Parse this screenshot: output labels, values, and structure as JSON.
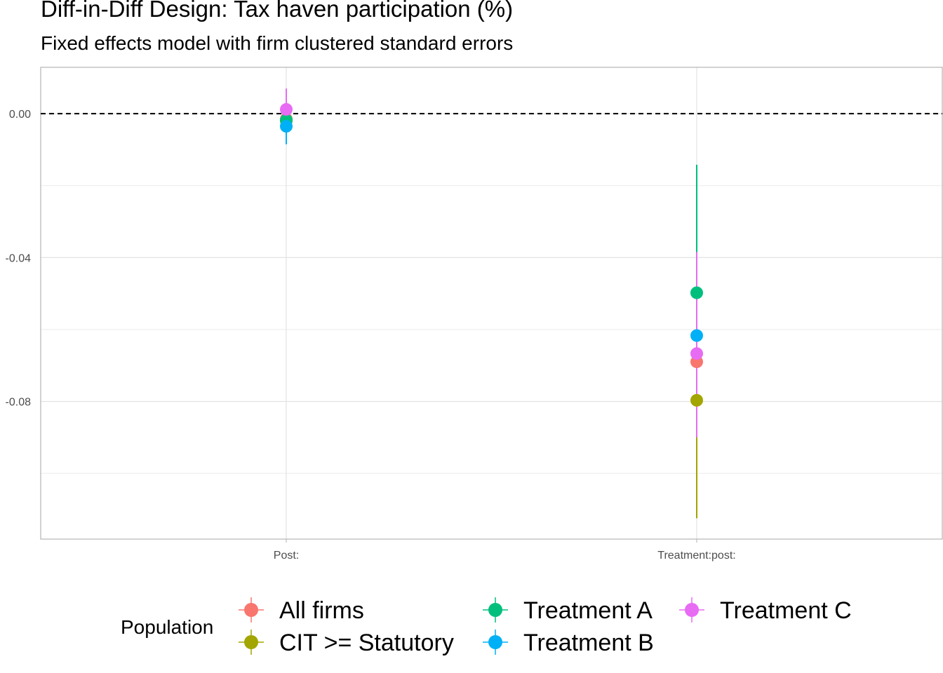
{
  "chart_data": {
    "type": "scatter",
    "title": "Diff-in-Diff Design: Tax haven participation (%)",
    "subtitle": "Fixed effects model with firm clustered standard errors",
    "xlabel": "",
    "ylabel": "",
    "categories": [
      "Post:",
      "Treatment:post:"
    ],
    "ylim": [
      -0.1183,
      0.0129
    ],
    "yticks": [
      0.0,
      -0.04,
      -0.08
    ],
    "ytick_labels": [
      "0.00",
      "-0.04",
      "-0.08"
    ],
    "reference_line": {
      "y": 0,
      "style": "dashed"
    },
    "grid": true,
    "legend": {
      "title": "Population",
      "position": "bottom"
    },
    "series": [
      {
        "name": "All firms",
        "color": "#F8766D",
        "points": [
          {
            "category": "Post:",
            "estimate": -0.0015,
            "low": -0.006,
            "high": 0.003
          },
          {
            "category": "Treatment:post:",
            "estimate": -0.069,
            "low": -0.09,
            "high": -0.048
          }
        ]
      },
      {
        "name": "CIT >= Statutory",
        "color": "#A3A500",
        "points": [
          {
            "category": "Post:",
            "estimate": -0.002,
            "low": -0.006,
            "high": 0.002
          },
          {
            "category": "Treatment:post:",
            "estimate": -0.0797,
            "low": -0.1125,
            "high": -0.048
          }
        ]
      },
      {
        "name": "Treatment A",
        "color": "#00BF7D",
        "points": [
          {
            "category": "Post:",
            "estimate": -0.0018,
            "low": -0.006,
            "high": 0.0025
          },
          {
            "category": "Treatment:post:",
            "estimate": -0.0498,
            "low": -0.085,
            "high": -0.0142
          }
        ]
      },
      {
        "name": "Treatment B",
        "color": "#00B0F6",
        "points": [
          {
            "category": "Post:",
            "estimate": -0.0035,
            "low": -0.0085,
            "high": 0.0015
          },
          {
            "category": "Treatment:post:",
            "estimate": -0.0617,
            "low": -0.085,
            "high": -0.0385
          }
        ]
      },
      {
        "name": "Treatment C",
        "color": "#E76BF3",
        "points": [
          {
            "category": "Post:",
            "estimate": 0.0012,
            "low": -0.0035,
            "high": 0.007
          },
          {
            "category": "Treatment:post:",
            "estimate": -0.0667,
            "low": -0.09,
            "high": -0.0385
          }
        ]
      }
    ]
  }
}
